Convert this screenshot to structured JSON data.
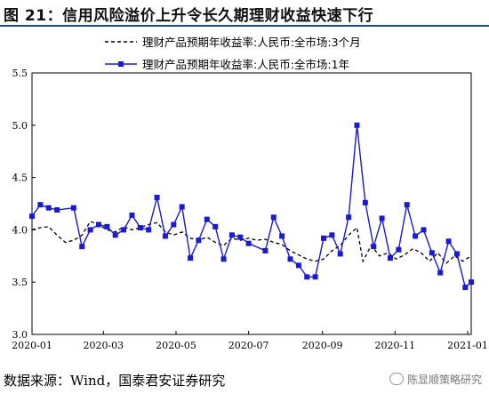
{
  "header": {
    "title": "图 21：信用风险溢价上升令长久期理财收益快速下行"
  },
  "footer": {
    "source": "数据来源：Wind，国泰君安证券研究",
    "watermark": "陈显顺策略研究"
  },
  "chart_data": {
    "type": "line",
    "title": "",
    "xlabel": "",
    "ylabel": "",
    "ylim": [
      3.0,
      5.5
    ],
    "yticks": [
      "3.0",
      "3.5",
      "4.0",
      "4.5",
      "5.0",
      "5.5"
    ],
    "xlim": [
      "2020-01-01",
      "2021-01-04"
    ],
    "xticks": [
      {
        "date": "2020-01-01",
        "label": "2020-01"
      },
      {
        "date": "2020-03-01",
        "label": "2020-03"
      },
      {
        "date": "2020-05-01",
        "label": "2020-05"
      },
      {
        "date": "2020-07-01",
        "label": "2020-07"
      },
      {
        "date": "2020-09-01",
        "label": "2020-09"
      },
      {
        "date": "2020-11-01",
        "label": "2020-11"
      },
      {
        "date": "2021-01-01",
        "label": "2021-01"
      }
    ],
    "grid": false,
    "legend": "top-center",
    "series": [
      {
        "name": "理财产品预期年收益率:人民币:全市场:3个月",
        "style": "dashed",
        "color": "#000000",
        "points": [
          [
            "2020-01-01",
            4.0
          ],
          [
            "2020-01-08",
            4.02
          ],
          [
            "2020-01-15",
            4.03
          ],
          [
            "2020-01-22",
            3.95
          ],
          [
            "2020-01-29",
            3.88
          ],
          [
            "2020-02-05",
            3.9
          ],
          [
            "2020-02-12",
            3.95
          ],
          [
            "2020-02-19",
            4.08
          ],
          [
            "2020-02-26",
            4.05
          ],
          [
            "2020-03-04",
            4.0
          ],
          [
            "2020-03-11",
            3.98
          ],
          [
            "2020-03-18",
            4.03
          ],
          [
            "2020-03-25",
            4.0
          ],
          [
            "2020-04-01",
            4.02
          ],
          [
            "2020-04-08",
            4.05
          ],
          [
            "2020-04-15",
            4.07
          ],
          [
            "2020-04-22",
            3.98
          ],
          [
            "2020-04-29",
            3.95
          ],
          [
            "2020-05-06",
            3.98
          ],
          [
            "2020-05-13",
            3.92
          ],
          [
            "2020-05-20",
            3.9
          ],
          [
            "2020-05-27",
            3.93
          ],
          [
            "2020-06-03",
            3.88
          ],
          [
            "2020-06-10",
            3.85
          ],
          [
            "2020-06-17",
            3.92
          ],
          [
            "2020-06-24",
            3.9
          ],
          [
            "2020-07-01",
            3.92
          ],
          [
            "2020-07-08",
            3.9
          ],
          [
            "2020-07-15",
            3.91
          ],
          [
            "2020-07-22",
            3.88
          ],
          [
            "2020-07-29",
            3.86
          ],
          [
            "2020-08-05",
            3.8
          ],
          [
            "2020-08-12",
            3.76
          ],
          [
            "2020-08-19",
            3.72
          ],
          [
            "2020-08-26",
            3.7
          ],
          [
            "2020-09-02",
            3.72
          ],
          [
            "2020-09-09",
            3.8
          ],
          [
            "2020-09-16",
            3.85
          ],
          [
            "2020-09-23",
            3.95
          ],
          [
            "2020-09-30",
            4.02
          ],
          [
            "2020-10-05",
            3.7
          ],
          [
            "2020-10-12",
            3.85
          ],
          [
            "2020-10-19",
            3.75
          ],
          [
            "2020-10-26",
            3.78
          ],
          [
            "2020-11-02",
            3.72
          ],
          [
            "2020-11-09",
            3.76
          ],
          [
            "2020-11-16",
            3.82
          ],
          [
            "2020-11-23",
            3.78
          ],
          [
            "2020-11-30",
            3.7
          ],
          [
            "2020-12-07",
            3.78
          ],
          [
            "2020-12-14",
            3.68
          ],
          [
            "2020-12-21",
            3.75
          ],
          [
            "2020-12-28",
            3.7
          ],
          [
            "2021-01-04",
            3.75
          ]
        ]
      },
      {
        "name": "理财产品预期年收益率:人民币:全市场:1年",
        "style": "solid-square-markers",
        "color": "#1a1ad6",
        "points": [
          [
            "2020-01-01",
            4.13
          ],
          [
            "2020-01-08",
            4.24
          ],
          [
            "2020-01-15",
            4.21
          ],
          [
            "2020-01-22",
            4.19
          ],
          [
            "2020-02-05",
            4.21
          ],
          [
            "2020-02-12",
            3.84
          ],
          [
            "2020-02-19",
            4.0
          ],
          [
            "2020-02-26",
            4.05
          ],
          [
            "2020-03-04",
            4.03
          ],
          [
            "2020-03-11",
            3.95
          ],
          [
            "2020-03-18",
            4.0
          ],
          [
            "2020-03-25",
            4.14
          ],
          [
            "2020-04-01",
            4.02
          ],
          [
            "2020-04-08",
            4.0
          ],
          [
            "2020-04-15",
            4.31
          ],
          [
            "2020-04-22",
            3.94
          ],
          [
            "2020-04-29",
            4.05
          ],
          [
            "2020-05-06",
            4.22
          ],
          [
            "2020-05-13",
            3.73
          ],
          [
            "2020-05-20",
            3.9
          ],
          [
            "2020-05-27",
            4.1
          ],
          [
            "2020-06-03",
            4.03
          ],
          [
            "2020-06-10",
            3.72
          ],
          [
            "2020-06-17",
            3.95
          ],
          [
            "2020-06-24",
            3.93
          ],
          [
            "2020-07-01",
            3.87
          ],
          [
            "2020-07-15",
            3.8
          ],
          [
            "2020-07-22",
            4.12
          ],
          [
            "2020-07-29",
            3.94
          ],
          [
            "2020-08-05",
            3.72
          ],
          [
            "2020-08-12",
            3.66
          ],
          [
            "2020-08-19",
            3.55
          ],
          [
            "2020-08-26",
            3.55
          ],
          [
            "2020-09-02",
            3.92
          ],
          [
            "2020-09-09",
            3.95
          ],
          [
            "2020-09-16",
            3.77
          ],
          [
            "2020-09-23",
            4.12
          ],
          [
            "2020-09-30",
            5.0
          ],
          [
            "2020-10-07",
            4.26
          ],
          [
            "2020-10-14",
            3.84
          ],
          [
            "2020-10-21",
            4.11
          ],
          [
            "2020-10-28",
            3.73
          ],
          [
            "2020-11-04",
            3.81
          ],
          [
            "2020-11-11",
            4.24
          ],
          [
            "2020-11-18",
            3.94
          ],
          [
            "2020-11-25",
            4.0
          ],
          [
            "2020-12-02",
            3.78
          ],
          [
            "2020-12-09",
            3.59
          ],
          [
            "2020-12-16",
            3.89
          ],
          [
            "2020-12-23",
            3.77
          ],
          [
            "2020-12-30",
            3.45
          ],
          [
            "2021-01-04",
            3.5
          ]
        ]
      }
    ]
  }
}
